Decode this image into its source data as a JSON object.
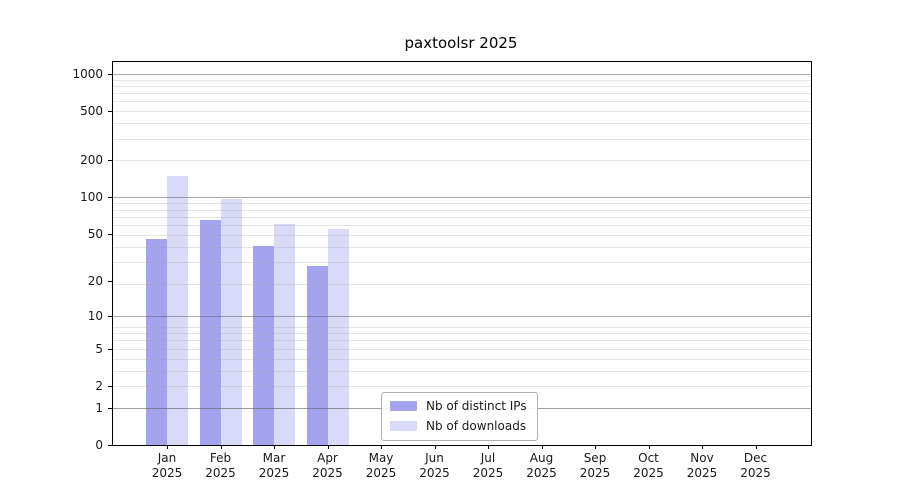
{
  "chart_data": {
    "type": "bar",
    "title": "paxtoolsr 2025",
    "scale": "log1p",
    "ylim": [
      0,
      1250
    ],
    "y_ticks": [
      1000,
      500,
      200,
      100,
      50,
      20,
      10,
      5,
      2,
      1,
      0
    ],
    "categories": [
      "Jan",
      "Feb",
      "Mar",
      "Apr",
      "May",
      "Jun",
      "Jul",
      "Aug",
      "Sep",
      "Oct",
      "Nov",
      "Dec"
    ],
    "year": "2025",
    "series": [
      {
        "name": "Nb of distinct IPs",
        "color": "#a4a4ee",
        "values": [
          45,
          65,
          40,
          27,
          0,
          0,
          0,
          0,
          0,
          0,
          0,
          0
        ]
      },
      {
        "name": "Nb of downloads",
        "color": "#d9d9f8",
        "values": [
          150,
          97,
          60,
          55,
          0,
          0,
          0,
          0,
          0,
          0,
          0,
          0
        ]
      }
    ],
    "grid": {
      "major_values": [
        1,
        10,
        100,
        1000
      ],
      "major_color": "rgba(70,70,70,0.45)",
      "minor_color": "rgba(160,160,160,0.28)"
    },
    "legend_position": "lower center",
    "axes": {
      "text_color": "#1a1a1a",
      "spine_color": "#000000",
      "background": "#ffffff"
    }
  }
}
